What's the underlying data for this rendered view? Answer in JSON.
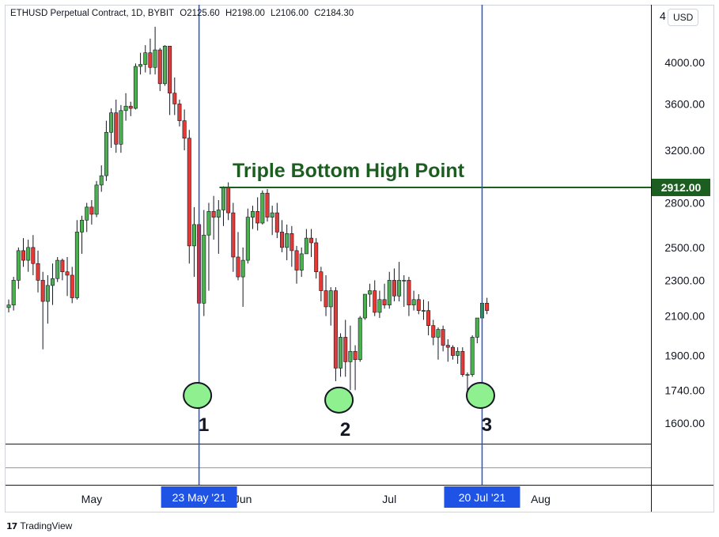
{
  "legend": {
    "symbol": "ETHUSD Perpetual Contract, 1D, BYBIT",
    "open": "O2125.60",
    "high": "H2198.00",
    "low": "L2106.00",
    "close": "C2184.30"
  },
  "currency_button": "USD",
  "top_axis_label_fragment": "4",
  "brand": "TradingView",
  "colors": {
    "up": "#4caf50",
    "down": "#e53935",
    "wick": "#131722",
    "annotation": "#1b5e20",
    "marker": "#1e53e5",
    "circle_fill": "#8ff08f"
  },
  "chart_data": {
    "type": "candlestick",
    "title": "Triple Bottom High Point",
    "ylim": [
      1500,
      4400
    ],
    "y_ticks": [
      "4000.00",
      "3600.00",
      "3200.00",
      "2800.00",
      "2500.00",
      "2300.00",
      "2100.00",
      "1900.00",
      "1740.00",
      "1600.00"
    ],
    "x_ticks": [
      {
        "label": "May",
        "index": 17
      },
      {
        "label": "Jun",
        "index": 48
      },
      {
        "label": "Jul",
        "index": 78
      },
      {
        "label": "Aug",
        "index": 109
      }
    ],
    "resistance": {
      "value": 2912,
      "label": "2912.00",
      "from_index": 44
    },
    "vertical_markers": [
      {
        "index": 39,
        "label": "23 May '21"
      },
      {
        "index": 97,
        "label": "20 Jul '21"
      }
    ],
    "bottom_markers": [
      {
        "index": 39,
        "value": 1720,
        "label": "1"
      },
      {
        "index": 68,
        "value": 1700,
        "label": "2"
      },
      {
        "index": 97,
        "value": 1720,
        "label": "3"
      }
    ],
    "ohlc": [
      [
        2146,
        2190,
        2120,
        2160
      ],
      [
        2160,
        2320,
        2130,
        2300
      ],
      [
        2300,
        2500,
        2250,
        2480
      ],
      [
        2480,
        2560,
        2380,
        2420
      ],
      [
        2420,
        2550,
        2350,
        2500
      ],
      [
        2500,
        2580,
        2330,
        2400
      ],
      [
        2400,
        2480,
        2230,
        2300
      ],
      [
        2300,
        2350,
        1930,
        2180
      ],
      [
        2180,
        2330,
        2060,
        2270
      ],
      [
        2270,
        2400,
        2160,
        2310
      ],
      [
        2310,
        2440,
        2290,
        2420
      ],
      [
        2420,
        2430,
        2300,
        2350
      ],
      [
        2350,
        2440,
        2210,
        2330
      ],
      [
        2330,
        2380,
        2170,
        2200
      ],
      [
        2200,
        2680,
        2190,
        2600
      ],
      [
        2600,
        2710,
        2460,
        2680
      ],
      [
        2680,
        2800,
        2600,
        2770
      ],
      [
        2770,
        2820,
        2650,
        2720
      ],
      [
        2720,
        2960,
        2700,
        2930
      ],
      [
        2930,
        3080,
        2880,
        3000
      ],
      [
        3000,
        3450,
        2960,
        3350
      ],
      [
        3350,
        3560,
        3220,
        3520
      ],
      [
        3520,
        3640,
        3180,
        3250
      ],
      [
        3250,
        3590,
        3180,
        3540
      ],
      [
        3540,
        3700,
        3450,
        3580
      ],
      [
        3580,
        3620,
        3490,
        3560
      ],
      [
        3560,
        3990,
        3550,
        3960
      ],
      [
        3960,
        4100,
        3880,
        3980
      ],
      [
        3980,
        4180,
        3900,
        4100
      ],
      [
        4100,
        4250,
        3880,
        3950
      ],
      [
        3950,
        4380,
        3880,
        4130
      ],
      [
        4130,
        4150,
        3720,
        3790
      ],
      [
        3790,
        4180,
        3770,
        4170
      ],
      [
        4170,
        4170,
        3500,
        3700
      ],
      [
        3700,
        3850,
        3500,
        3600
      ],
      [
        3600,
        3640,
        3400,
        3450
      ],
      [
        3450,
        3550,
        3200,
        3300
      ],
      [
        3300,
        3370,
        2400,
        2510
      ],
      [
        2510,
        2770,
        2320,
        2650
      ],
      [
        2650,
        2750,
        1910,
        2170
      ],
      [
        2170,
        2750,
        2100,
        2580
      ],
      [
        2580,
        2800,
        2240,
        2740
      ],
      [
        2740,
        2850,
        2550,
        2700
      ],
      [
        2700,
        2820,
        2460,
        2750
      ],
      [
        2750,
        2920,
        2640,
        2910
      ],
      [
        2910,
        2950,
        2680,
        2730
      ],
      [
        2730,
        2800,
        2350,
        2440
      ],
      [
        2440,
        2600,
        2300,
        2320
      ],
      [
        2320,
        2500,
        2150,
        2420
      ],
      [
        2420,
        2760,
        2400,
        2700
      ],
      [
        2700,
        2780,
        2620,
        2740
      ],
      [
        2740,
        2840,
        2610,
        2660
      ],
      [
        2660,
        2890,
        2650,
        2870
      ],
      [
        2870,
        2900,
        2670,
        2700
      ],
      [
        2700,
        2780,
        2580,
        2730
      ],
      [
        2730,
        2800,
        2560,
        2600
      ],
      [
        2600,
        2680,
        2470,
        2500
      ],
      [
        2500,
        2650,
        2420,
        2590
      ],
      [
        2590,
        2640,
        2380,
        2480
      ],
      [
        2480,
        2510,
        2280,
        2360
      ],
      [
        2360,
        2500,
        2320,
        2460
      ],
      [
        2460,
        2620,
        2460,
        2560
      ],
      [
        2560,
        2620,
        2440,
        2530
      ],
      [
        2530,
        2560,
        2310,
        2350
      ],
      [
        2350,
        2380,
        2180,
        2240
      ],
      [
        2240,
        2330,
        2100,
        2150
      ],
      [
        2150,
        2260,
        2050,
        2240
      ],
      [
        2240,
        2260,
        1780,
        1840
      ],
      [
        1840,
        2010,
        1800,
        1990
      ],
      [
        1990,
        2080,
        1800,
        1870
      ],
      [
        1870,
        2050,
        1740,
        1920
      ],
      [
        1920,
        1950,
        1740,
        1880
      ],
      [
        1880,
        2100,
        1870,
        2090
      ],
      [
        2090,
        2220,
        2080,
        2220
      ],
      [
        2220,
        2280,
        2150,
        2240
      ],
      [
        2240,
        2300,
        2100,
        2120
      ],
      [
        2120,
        2240,
        2090,
        2190
      ],
      [
        2190,
        2280,
        2140,
        2160
      ],
      [
        2160,
        2350,
        2140,
        2300
      ],
      [
        2300,
        2370,
        2180,
        2210
      ],
      [
        2210,
        2410,
        2180,
        2300
      ],
      [
        2300,
        2330,
        2150,
        2300
      ],
      [
        2300,
        2320,
        2100,
        2160
      ],
      [
        2160,
        2240,
        2130,
        2190
      ],
      [
        2190,
        2220,
        2110,
        2130
      ],
      [
        2130,
        2190,
        2080,
        2130
      ],
      [
        2130,
        2180,
        2000,
        2050
      ],
      [
        2050,
        2080,
        1950,
        1990
      ],
      [
        1990,
        2040,
        1880,
        2030
      ],
      [
        2030,
        2050,
        1920,
        1950
      ],
      [
        1950,
        1980,
        1870,
        1940
      ],
      [
        1940,
        1950,
        1880,
        1900
      ],
      [
        1900,
        1940,
        1860,
        1920
      ],
      [
        1920,
        1940,
        1800,
        1810
      ],
      [
        1810,
        1820,
        1710,
        1810
      ],
      [
        1810,
        2000,
        1800,
        1990
      ],
      [
        1990,
        2080,
        1960,
        2090
      ],
      [
        2090,
        2200,
        2050,
        2170
      ],
      [
        2170,
        2200,
        2110,
        2130
      ]
    ]
  },
  "annotation_title": "Triple Bottom High Point"
}
